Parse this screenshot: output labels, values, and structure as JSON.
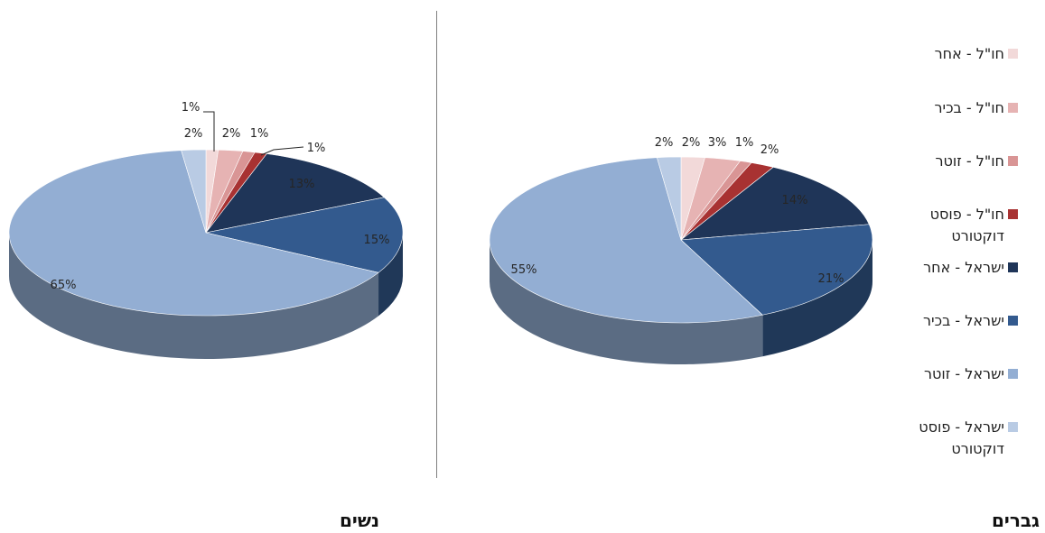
{
  "chart_data": [
    {
      "type": "pie",
      "title": "נשים",
      "categories": [
        "חו\"ל - אחר",
        "חו\"ל - בכיר",
        "חו\"ל - זוטר",
        "חו\"ל - פוסט דוקטורט",
        "ישראל - אחר",
        "ישראל - בכיר",
        "ישראל - זוטר",
        "ישראל - פוסט דוקטורט"
      ],
      "values": [
        1,
        2,
        1,
        1,
        13,
        15,
        65,
        2
      ],
      "labels": [
        "1%",
        "2%",
        "1%",
        "1%",
        "13%",
        "15%",
        "65%",
        "2%"
      ]
    },
    {
      "type": "pie",
      "title": "גברים",
      "categories": [
        "חו\"ל - אחר",
        "חו\"ל - בכיר",
        "חו\"ל - זוטר",
        "חו\"ל - פוסט דוקטורט",
        "ישראל - אחר",
        "ישראל - בכיר",
        "ישראל - זוטר",
        "ישראל - פוסט דוקטורט"
      ],
      "values": [
        2,
        3,
        1,
        2,
        14,
        21,
        55,
        2
      ],
      "labels": [
        "2%",
        "3%",
        "1%",
        "2%",
        "14%",
        "21%",
        "55%",
        "2%"
      ]
    }
  ],
  "legend": {
    "items": [
      {
        "label": "חו\"ל - אחר",
        "color": "#f2d9d9"
      },
      {
        "label": "חו\"ל - בכיר",
        "color": "#e6b3b3"
      },
      {
        "label": "חו\"ל - זוטר",
        "color": "#d99595"
      },
      {
        "label": "חו\"ל - פוסט דוקטורט",
        "color": "#a83232"
      },
      {
        "label": "ישראל - אחר",
        "color": "#1f3558"
      },
      {
        "label": "ישראל - בכיר",
        "color": "#335a8e"
      },
      {
        "label": "ישראל - זוטר",
        "color": "#93aed3"
      },
      {
        "label": "ישראל - פוסט דוקטורט",
        "color": "#b9cbe4"
      }
    ]
  }
}
